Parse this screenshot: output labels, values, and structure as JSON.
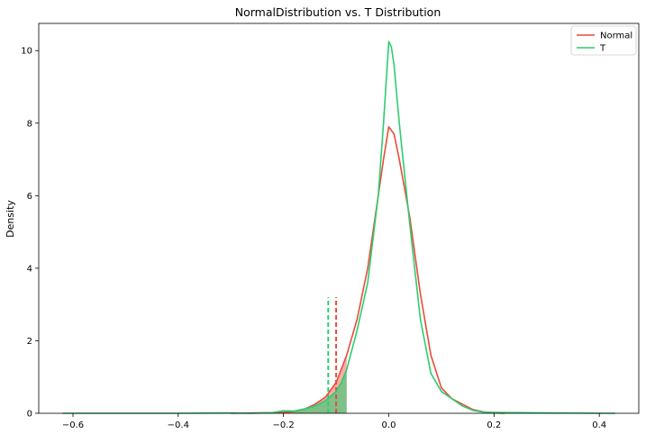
{
  "chart_data": {
    "type": "line",
    "title": "NormalDistribution vs. T Distribution",
    "xlabel": "",
    "ylabel": "Density",
    "xlim": [
      -0.665,
      0.475
    ],
    "ylim": [
      0,
      10.75
    ],
    "xticks": [
      -0.6,
      -0.4,
      -0.2,
      0.0,
      0.2,
      0.4
    ],
    "xtick_labels": [
      "−0.6",
      "−0.4",
      "−0.2",
      "0.0",
      "0.2",
      "0.4"
    ],
    "yticks": [
      0,
      2,
      4,
      6,
      8,
      10
    ],
    "ytick_labels": [
      "0",
      "2",
      "4",
      "6",
      "8",
      "10"
    ],
    "grid": false,
    "legend_position": "top-right",
    "series": [
      {
        "name": "Normal",
        "color": "#e74c3c",
        "points": [
          [
            -0.3,
            0.0
          ],
          [
            -0.25,
            0.01
          ],
          [
            -0.2,
            0.02
          ],
          [
            -0.18,
            0.05
          ],
          [
            -0.16,
            0.12
          ],
          [
            -0.14,
            0.25
          ],
          [
            -0.12,
            0.45
          ],
          [
            -0.1,
            0.85
          ],
          [
            -0.08,
            1.6
          ],
          [
            -0.06,
            2.6
          ],
          [
            -0.04,
            4.0
          ],
          [
            -0.02,
            6.0
          ],
          [
            -0.01,
            7.0
          ],
          [
            0.0,
            7.9
          ],
          [
            0.01,
            7.7
          ],
          [
            0.02,
            7.0
          ],
          [
            0.04,
            5.4
          ],
          [
            0.06,
            3.3
          ],
          [
            0.08,
            1.6
          ],
          [
            0.1,
            0.7
          ],
          [
            0.12,
            0.4
          ],
          [
            0.14,
            0.25
          ],
          [
            0.16,
            0.1
          ],
          [
            0.18,
            0.04
          ],
          [
            0.2,
            0.01
          ],
          [
            0.22,
            0.0
          ]
        ],
        "var_threshold": -0.1,
        "var_line_height": 3.2
      },
      {
        "name": "T",
        "color": "#2ecc71",
        "points": [
          [
            -0.62,
            0.0
          ],
          [
            -0.5,
            0.0
          ],
          [
            -0.4,
            0.0
          ],
          [
            -0.3,
            0.01
          ],
          [
            -0.26,
            0.0
          ],
          [
            -0.22,
            0.02
          ],
          [
            -0.2,
            0.07
          ],
          [
            -0.18,
            0.06
          ],
          [
            -0.16,
            0.12
          ],
          [
            -0.14,
            0.2
          ],
          [
            -0.12,
            0.35
          ],
          [
            -0.1,
            0.6
          ],
          [
            -0.09,
            0.85
          ],
          [
            -0.08,
            1.2
          ],
          [
            -0.06,
            2.3
          ],
          [
            -0.04,
            3.6
          ],
          [
            -0.02,
            6.0
          ],
          [
            -0.01,
            8.0
          ],
          [
            0.0,
            10.25
          ],
          [
            0.005,
            10.1
          ],
          [
            0.01,
            9.6
          ],
          [
            0.02,
            8.0
          ],
          [
            0.04,
            5.2
          ],
          [
            0.06,
            2.6
          ],
          [
            0.08,
            1.1
          ],
          [
            0.1,
            0.6
          ],
          [
            0.12,
            0.4
          ],
          [
            0.14,
            0.2
          ],
          [
            0.16,
            0.08
          ],
          [
            0.18,
            0.03
          ],
          [
            0.22,
            0.02
          ],
          [
            0.3,
            0.01
          ],
          [
            0.43,
            0.0
          ]
        ],
        "var_threshold": -0.115,
        "var_line_height": 3.2
      }
    ]
  }
}
